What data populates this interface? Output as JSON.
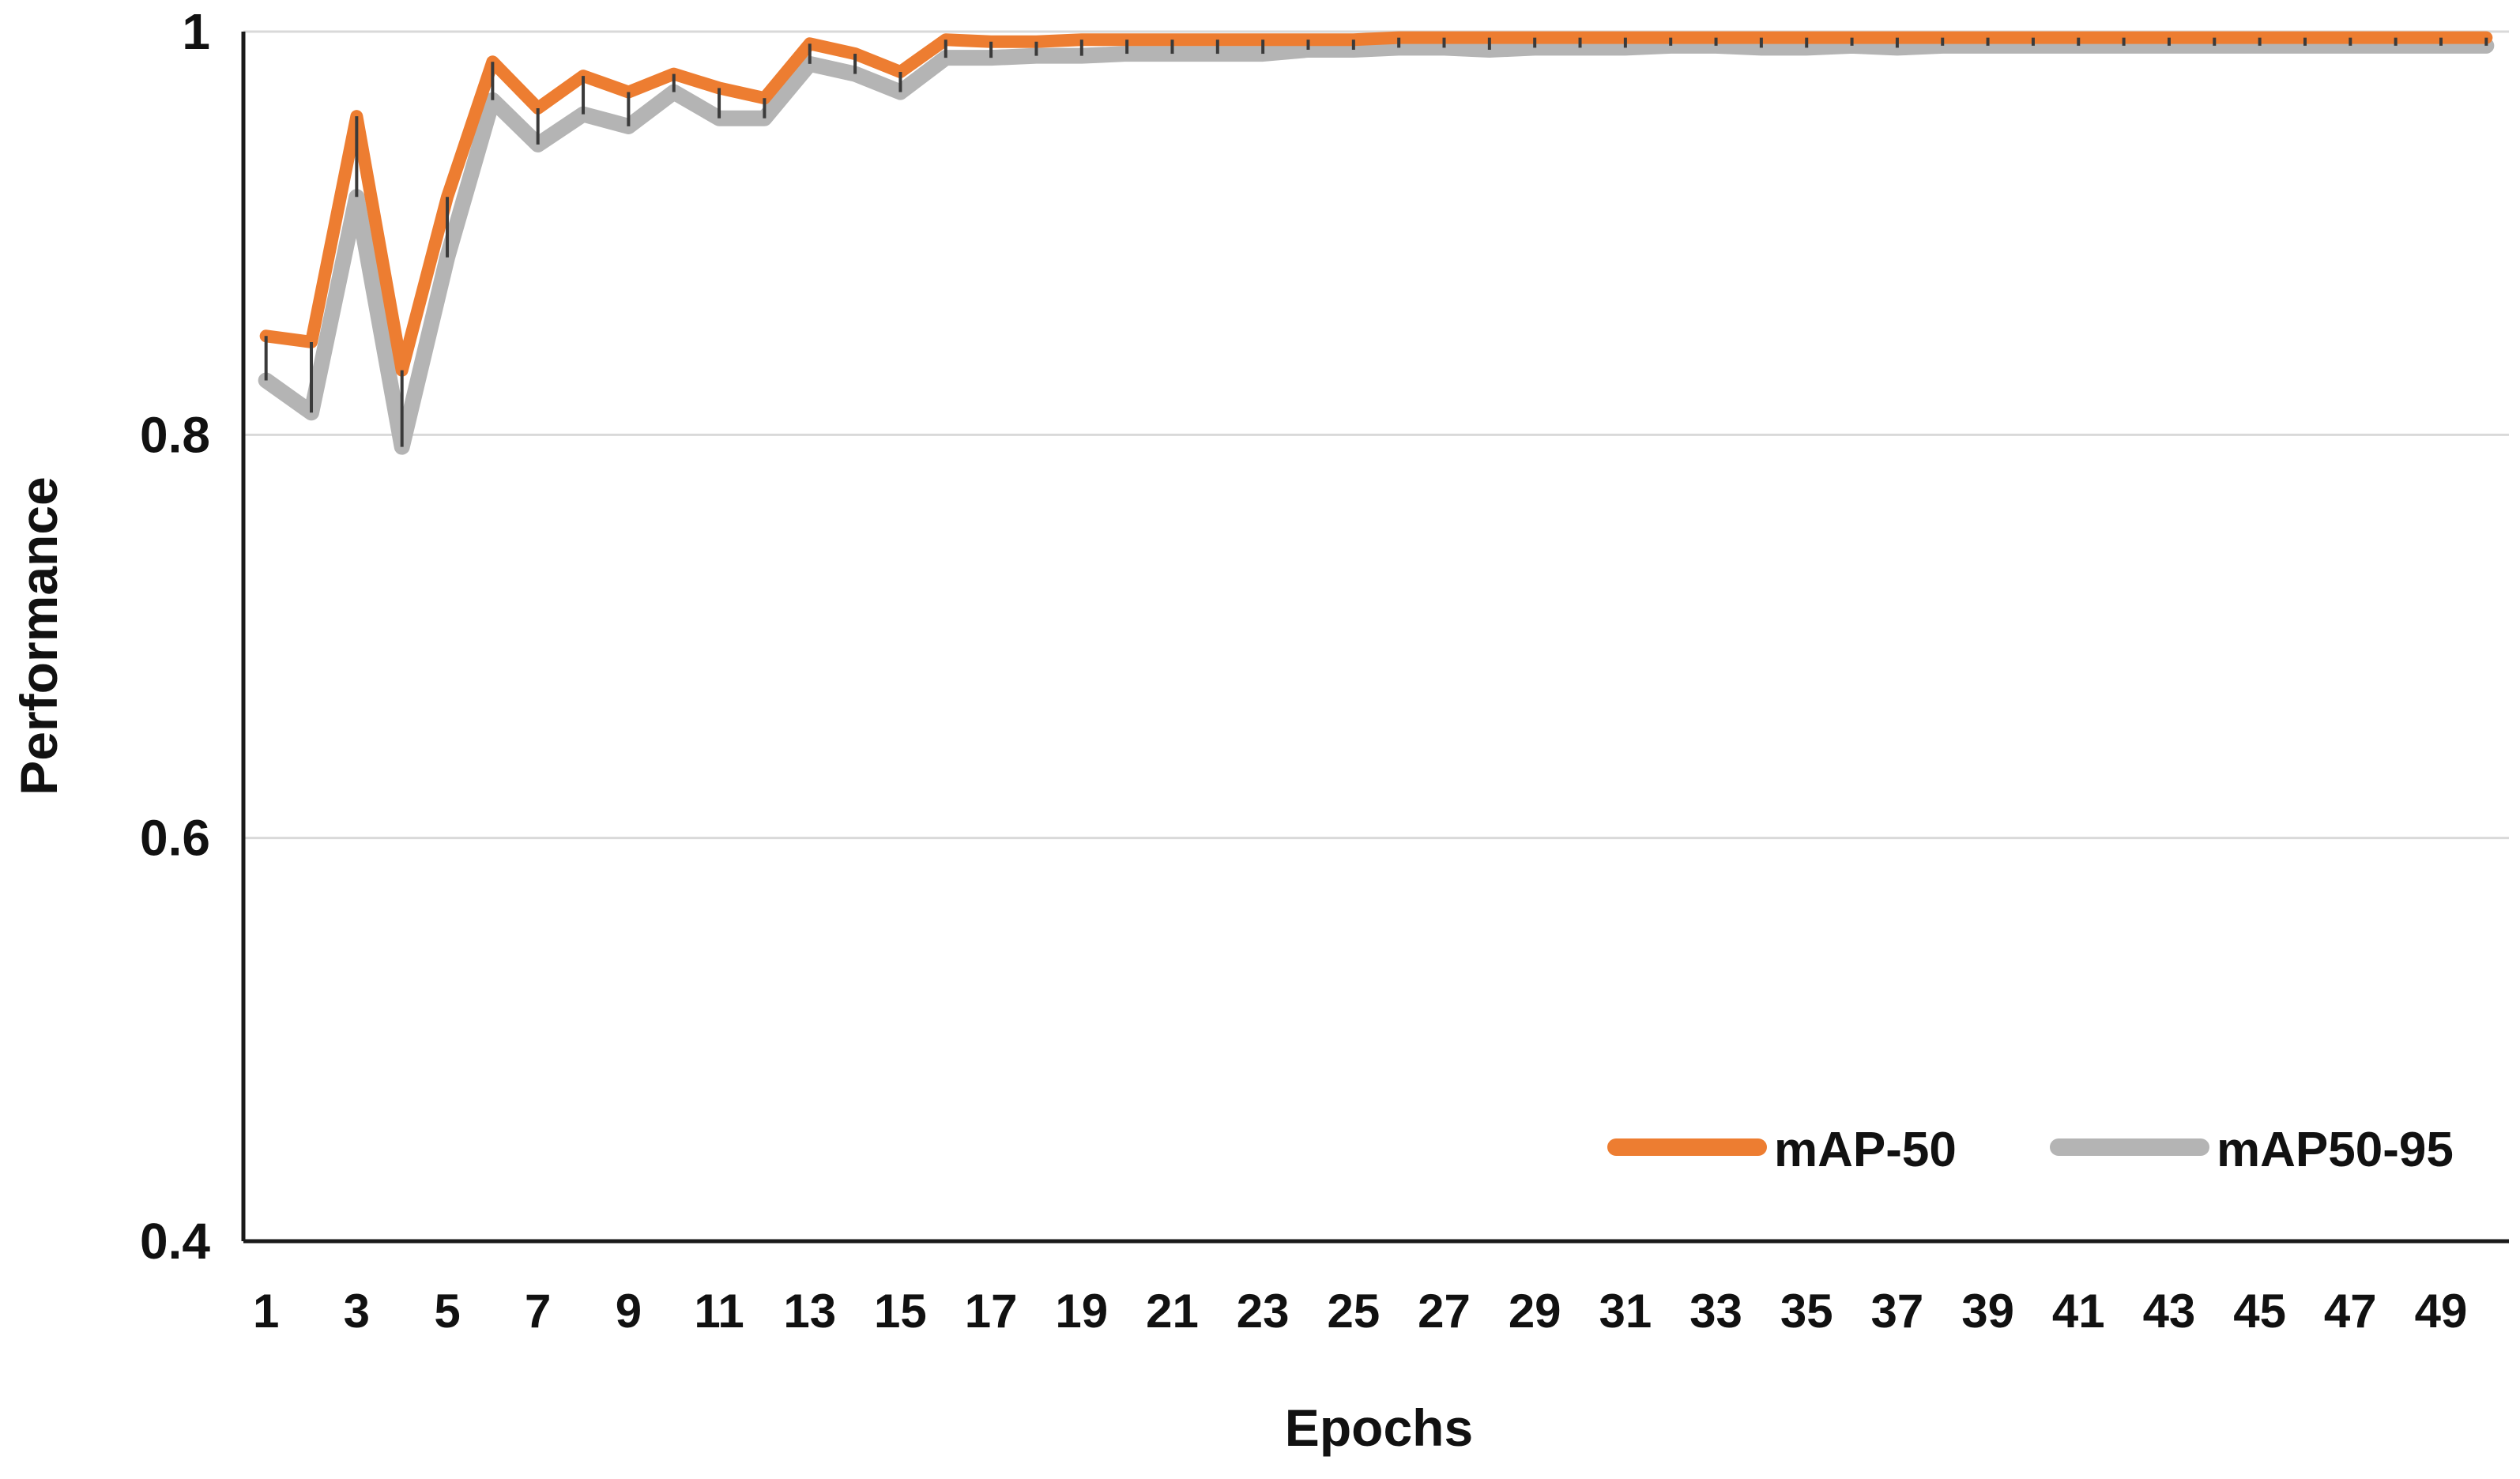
{
  "chart_data": {
    "type": "line",
    "xlabel": "Epochs",
    "ylabel": "Performance",
    "ylim": [
      0.4,
      1.0
    ],
    "yticks": [
      "0.4",
      "0.6",
      "0.8",
      "1"
    ],
    "ytick_values": [
      0.4,
      0.6,
      0.8,
      1.0
    ],
    "x": [
      1,
      2,
      3,
      4,
      5,
      6,
      7,
      8,
      9,
      10,
      11,
      12,
      13,
      14,
      15,
      16,
      17,
      18,
      19,
      20,
      21,
      22,
      23,
      24,
      25,
      26,
      27,
      28,
      29,
      30,
      31,
      32,
      33,
      34,
      35,
      36,
      37,
      38,
      39,
      40,
      41,
      42,
      43,
      44,
      45,
      46,
      47,
      48,
      49,
      50
    ],
    "xtick_labels": [
      "1",
      "3",
      "5",
      "7",
      "9",
      "11",
      "13",
      "15",
      "17",
      "19",
      "21",
      "23",
      "25",
      "27",
      "29",
      "31",
      "33",
      "35",
      "37",
      "39",
      "41",
      "43",
      "45",
      "47",
      "49"
    ],
    "grid": "horizontal",
    "legend_position": "bottom-right",
    "high_low_lines": true,
    "series": [
      {
        "name": "mAP-50",
        "color": "#ED7D31",
        "values": [
          0.849,
          0.846,
          0.958,
          0.832,
          0.918,
          0.985,
          0.962,
          0.978,
          0.97,
          0.979,
          0.972,
          0.967,
          0.994,
          0.989,
          0.98,
          0.996,
          0.995,
          0.995,
          0.996,
          0.996,
          0.996,
          0.996,
          0.996,
          0.996,
          0.996,
          0.997,
          0.997,
          0.997,
          0.997,
          0.997,
          0.997,
          0.997,
          0.997,
          0.997,
          0.997,
          0.997,
          0.997,
          0.997,
          0.997,
          0.997,
          0.997,
          0.997,
          0.997,
          0.997,
          0.997,
          0.997,
          0.997,
          0.997,
          0.997,
          0.997
        ]
      },
      {
        "name": "mAP50-95",
        "color": "#B4B4B4",
        "values": [
          0.827,
          0.811,
          0.918,
          0.794,
          0.888,
          0.966,
          0.944,
          0.959,
          0.953,
          0.97,
          0.957,
          0.957,
          0.984,
          0.979,
          0.97,
          0.987,
          0.987,
          0.988,
          0.988,
          0.989,
          0.989,
          0.989,
          0.989,
          0.991,
          0.991,
          0.992,
          0.992,
          0.991,
          0.992,
          0.992,
          0.992,
          0.993,
          0.993,
          0.992,
          0.992,
          0.993,
          0.992,
          0.993,
          0.993,
          0.993,
          0.993,
          0.993,
          0.993,
          0.993,
          0.993,
          0.993,
          0.993,
          0.993,
          0.993,
          0.993
        ]
      }
    ]
  }
}
